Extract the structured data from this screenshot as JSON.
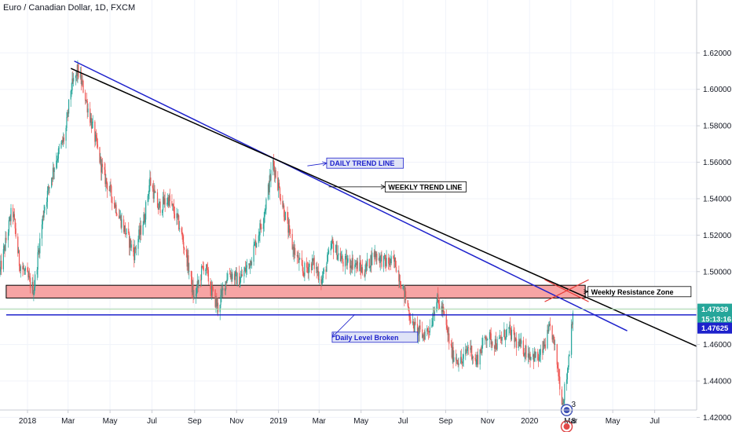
{
  "chart_data": {
    "type": "candlestick",
    "title": "Euro / Canadian Dollar, 1D, FXCM",
    "symbol": "EURCAD",
    "timeframe": "1D",
    "broker": "FXCM",
    "y_ticks": [
      "1.62000",
      "1.60000",
      "1.58000",
      "1.56000",
      "1.54000",
      "1.52000",
      "1.50000",
      "1.48000",
      "1.46000",
      "1.44000",
      "1.42000"
    ],
    "x_ticks": [
      "2018",
      "Mar",
      "May",
      "Jul",
      "Sep",
      "Nov",
      "2019",
      "Mar",
      "May",
      "Jul",
      "Sep",
      "Nov",
      "2020",
      "Mar",
      "May",
      "Jul"
    ],
    "x_start": "2017-11-22",
    "x_end": "2020-08-31",
    "ylim": [
      1.412,
      1.649
    ],
    "colors": {
      "up": "#26a69a",
      "down": "#ef5350",
      "blue_line": "#1e22cc",
      "black_line": "#000000",
      "zone_fill": "#f7a4a4"
    },
    "price_path": [
      [
        "2017-11-22",
        1.5
      ],
      [
        "2017-12-10",
        1.535
      ],
      [
        "2017-12-20",
        1.505
      ],
      [
        "2018-01-10",
        1.49
      ],
      [
        "2018-01-25",
        1.535
      ],
      [
        "2018-02-10",
        1.56
      ],
      [
        "2018-02-25",
        1.575
      ],
      [
        "2018-03-05",
        1.6
      ],
      [
        "2018-03-15",
        1.61
      ],
      [
        "2018-03-22",
        1.602
      ],
      [
        "2018-04-05",
        1.58
      ],
      [
        "2018-04-20",
        1.555
      ],
      [
        "2018-05-05",
        1.54
      ],
      [
        "2018-05-20",
        1.525
      ],
      [
        "2018-06-05",
        1.51
      ],
      [
        "2018-06-20",
        1.53
      ],
      [
        "2018-06-28",
        1.55
      ],
      [
        "2018-07-10",
        1.535
      ],
      [
        "2018-07-25",
        1.54
      ],
      [
        "2018-08-10",
        1.525
      ],
      [
        "2018-08-22",
        1.505
      ],
      [
        "2018-08-31",
        1.485
      ],
      [
        "2018-09-15",
        1.505
      ],
      [
        "2018-09-25",
        1.49
      ],
      [
        "2018-10-05",
        1.48
      ],
      [
        "2018-10-20",
        1.5
      ],
      [
        "2018-11-05",
        1.495
      ],
      [
        "2018-11-20",
        1.505
      ],
      [
        "2018-12-10",
        1.53
      ],
      [
        "2018-12-24",
        1.56
      ],
      [
        "2019-01-05",
        1.54
      ],
      [
        "2019-01-20",
        1.515
      ],
      [
        "2019-02-05",
        1.5
      ],
      [
        "2019-02-20",
        1.505
      ],
      [
        "2019-03-05",
        1.495
      ],
      [
        "2019-03-20",
        1.515
      ],
      [
        "2019-04-05",
        1.505
      ],
      [
        "2019-04-20",
        1.505
      ],
      [
        "2019-05-05",
        1.5
      ],
      [
        "2019-05-20",
        1.51
      ],
      [
        "2019-06-05",
        1.505
      ],
      [
        "2019-06-20",
        1.505
      ],
      [
        "2019-07-05",
        1.485
      ],
      [
        "2019-07-15",
        1.47
      ],
      [
        "2019-07-30",
        1.465
      ],
      [
        "2019-08-10",
        1.47
      ],
      [
        "2019-08-18",
        1.485
      ],
      [
        "2019-08-28",
        1.478
      ],
      [
        "2019-09-10",
        1.455
      ],
      [
        "2019-09-25",
        1.45
      ],
      [
        "2019-10-05",
        1.46
      ],
      [
        "2019-10-15",
        1.45
      ],
      [
        "2019-10-30",
        1.465
      ],
      [
        "2019-11-15",
        1.46
      ],
      [
        "2019-12-01",
        1.468
      ],
      [
        "2019-12-15",
        1.46
      ],
      [
        "2020-01-01",
        1.455
      ],
      [
        "2020-01-15",
        1.452
      ],
      [
        "2020-01-25",
        1.462
      ],
      [
        "2020-02-01",
        1.47
      ],
      [
        "2020-02-10",
        1.45
      ],
      [
        "2020-02-18",
        1.428
      ],
      [
        "2020-02-25",
        1.445
      ],
      [
        "2020-03-04",
        1.479
      ]
    ],
    "lines": [
      {
        "name": "daily-trend-line",
        "color": "#1e22cc",
        "from": [
          "2018-03-10",
          1.6155
        ],
        "to": [
          "2020-05-22",
          1.4675
        ]
      },
      {
        "name": "weekly-trend-line",
        "color": "#000000",
        "from": [
          "2018-03-05",
          1.6115
        ],
        "to": [
          "2020-08-31",
          1.459
        ]
      },
      {
        "name": "daily-level",
        "color": "#1e22cc",
        "from": [
          "2017-12-01",
          1.47625
        ],
        "to": [
          "2020-08-31",
          1.47625
        ]
      },
      {
        "name": "current-price-line",
        "color": "#a8d8a8",
        "from": [
          "2017-11-22",
          1.47939
        ],
        "to": [
          "2020-08-31",
          1.47939
        ]
      }
    ],
    "zone": {
      "label": "Weekly Resistance Zone",
      "from_date": "2017-12-01",
      "to_date": "2020-03-22",
      "y_low": 1.4855,
      "y_high": 1.4925
    },
    "annotations": [
      {
        "text": "DAILY TREND LINE",
        "date": "2019-03-12",
        "y": 1.5595,
        "arrow_from": [
          "2019-02-12",
          1.558
        ],
        "style": "blue"
      },
      {
        "text": "WEEKLY TREND LINE",
        "date": "2019-06-05",
        "y": 1.5465,
        "arrow_from": [
          "2019-03-15",
          1.5465
        ],
        "style": "black"
      },
      {
        "text": "Weekly Resistance Zone",
        "date": "2020-03-26",
        "y": 1.489,
        "arrow_from": [
          "2020-03-20",
          1.489
        ],
        "style": "black"
      },
      {
        "text": "Daily Level Broken",
        "date": "2019-03-20",
        "y": 1.464,
        "arrow_from": [
          "2019-04-22",
          1.4765
        ],
        "style": "blue"
      }
    ],
    "price_labels": [
      {
        "value": "1.47939",
        "y": 1.47939,
        "bg": "#26a69a"
      },
      {
        "value": "15:13:16",
        "y": 1.474,
        "bg": "#26a69a"
      },
      {
        "value": "1.47625",
        "y": 1.469,
        "bg": "#1e22cc"
      }
    ],
    "event_markers": [
      {
        "label": "3",
        "date": "2020-02-24",
        "y": 1.424,
        "color": "#3f51b5"
      },
      {
        "label": "8",
        "date": "2020-02-24",
        "y": 1.415,
        "color": "#e04848"
      }
    ]
  }
}
